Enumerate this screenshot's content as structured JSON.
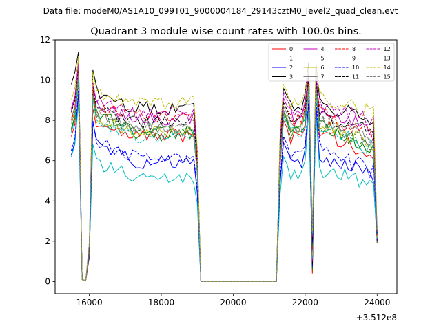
{
  "chart_data": {
    "type": "line",
    "suptitle": "Data file: modeM0/AS1A10_099T01_9000004184_29143cztM0_level2_quad_clean.evt",
    "title": "Quadrant 3 module wise count rates with 100.0s bins.",
    "xlabel": "",
    "ylabel": "",
    "x_offset_label": "+3.512e8",
    "xlim": [
      15050,
      24550
    ],
    "ylim": [
      -0.6,
      12
    ],
    "xticks": [
      16000,
      18000,
      20000,
      22000,
      24000
    ],
    "xtick_labels": [
      "16000",
      "18000",
      "20000",
      "22000",
      "24000"
    ],
    "yticks": [
      0,
      2,
      4,
      6,
      8,
      10,
      12
    ],
    "ytick_labels": [
      "0",
      "2",
      "4",
      "6",
      "8",
      "10",
      "12"
    ],
    "x_start": 15500,
    "x_step": 100,
    "segments": [
      {
        "n": 36,
        "stop": 19000
      },
      {
        "gap_start": 19100,
        "gap_end": 21200,
        "value": 0
      },
      {
        "n": 29,
        "start": 21300
      }
    ],
    "legend": {
      "location": "top-right",
      "columns": 4
    },
    "series": [
      {
        "name": "0",
        "color": "#ff0000",
        "dashed": false,
        "base": 7.2,
        "peak": 10.2,
        "after": 7.6,
        "level": 7.2,
        "l2": 7.1,
        "end": 6.3
      },
      {
        "name": "1",
        "color": "#008000",
        "dashed": false,
        "base": 7.6,
        "peak": 10.6,
        "after": 8.4,
        "level": 7.4,
        "l2": 7.5,
        "end": 6.7
      },
      {
        "name": "2",
        "color": "#0000ff",
        "dashed": false,
        "base": 6.3,
        "peak": 9.4,
        "after": 6.9,
        "level": 5.9,
        "l2": 6.0,
        "end": 5.2
      },
      {
        "name": "3",
        "color": "#000000",
        "dashed": false,
        "base": 9.8,
        "peak": 11.4,
        "after": 9.5,
        "level": 8.6,
        "l2": 8.7,
        "end": 7.8
      },
      {
        "name": "4",
        "color": "#c000c0",
        "dashed": false,
        "base": 8.5,
        "peak": 10.9,
        "after": 8.7,
        "level": 8.1,
        "l2": 8.2,
        "end": 7.6
      },
      {
        "name": "5",
        "color": "#00bfbf",
        "dashed": false,
        "base": 6.2,
        "peak": 8.9,
        "after": 5.8,
        "level": 5.2,
        "l2": 5.3,
        "end": 4.8
      },
      {
        "name": "6",
        "color": "#bfbf00",
        "dashed": false,
        "base": 7.9,
        "peak": 10.3,
        "after": 8.2,
        "level": 7.4,
        "l2": 7.6,
        "end": 6.8
      },
      {
        "name": "7",
        "color": "#808080",
        "dashed": false,
        "base": 8.1,
        "peak": 10.5,
        "after": 8.4,
        "level": 7.7,
        "l2": 7.8,
        "end": 7.1
      },
      {
        "name": "8",
        "color": "#ff0000",
        "dashed": true,
        "base": 8.0,
        "peak": 10.4,
        "after": 8.6,
        "level": 8.2,
        "l2": 8.0,
        "end": 7.3
      },
      {
        "name": "9",
        "color": "#008000",
        "dashed": true,
        "base": 7.5,
        "peak": 10.1,
        "after": 8.3,
        "level": 7.3,
        "l2": 7.4,
        "end": 6.6
      },
      {
        "name": "10",
        "color": "#0000ff",
        "dashed": true,
        "base": 6.5,
        "peak": 9.6,
        "after": 7.0,
        "level": 6.2,
        "l2": 6.3,
        "end": 5.5
      },
      {
        "name": "11",
        "color": "#000000",
        "dashed": true,
        "base": 8.4,
        "peak": 10.7,
        "after": 8.7,
        "level": 7.9,
        "l2": 8.0,
        "end": 7.4
      },
      {
        "name": "12",
        "color": "#c000c0",
        "dashed": true,
        "base": 8.6,
        "peak": 10.8,
        "after": 8.9,
        "level": 8.4,
        "l2": 8.5,
        "end": 7.9
      },
      {
        "name": "13",
        "color": "#00bfbf",
        "dashed": true,
        "base": 7.4,
        "peak": 10.0,
        "after": 8.0,
        "level": 7.2,
        "l2": 7.3,
        "end": 6.6
      },
      {
        "name": "14",
        "color": "#bfbf00",
        "dashed": true,
        "base": 9.0,
        "peak": 11.2,
        "after": 9.4,
        "level": 8.9,
        "l2": 8.9,
        "end": 8.4
      },
      {
        "name": "15",
        "color": "#808080",
        "dashed": true,
        "base": 7.8,
        "peak": 10.3,
        "after": 8.2,
        "level": 7.5,
        "l2": 7.6,
        "end": 7.0
      }
    ]
  }
}
